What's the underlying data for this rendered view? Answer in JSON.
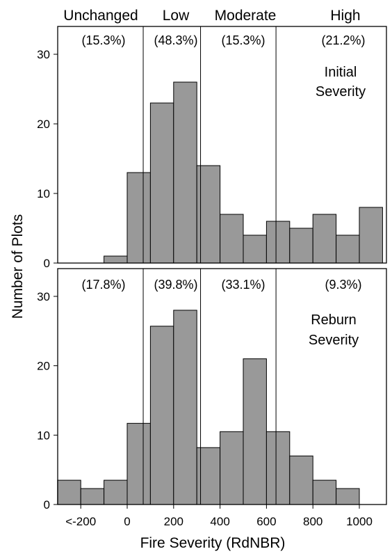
{
  "figure": {
    "ylabel": "Number of Plots",
    "xlabel": "Fire Severity (RdNBR)",
    "xtick_labels": [
      "<-200",
      "0",
      "200",
      "400",
      "600",
      "800",
      "1000"
    ],
    "xtick_values": [
      -200,
      0,
      200,
      400,
      600,
      800,
      1000
    ],
    "bar_color": "#999999",
    "edge_color": "#000000"
  },
  "chart_data": [
    {
      "type": "bar",
      "panel": "top",
      "panel_label": [
        "Initial",
        "Severity"
      ],
      "class_labels": [
        "Unchanged",
        "Low",
        "Moderate",
        "High"
      ],
      "class_percents": [
        "(15.3%)",
        "(48.3%)",
        "(15.3%)",
        "(21.2%)"
      ],
      "class_boundaries": [
        69,
        316,
        641
      ],
      "bin_width": 100,
      "bin_starts": [
        -300,
        -200,
        -100,
        0,
        100,
        200,
        300,
        400,
        500,
        600,
        700,
        800,
        900,
        1000
      ],
      "values": [
        0,
        0,
        1,
        13,
        23,
        26,
        14,
        7,
        4,
        6,
        5,
        7,
        4,
        8
      ],
      "ylim": [
        0,
        34
      ],
      "yticks": [
        0,
        10,
        20,
        30
      ],
      "grid": false
    },
    {
      "type": "bar",
      "panel": "bottom",
      "panel_label": [
        "Reburn",
        "Severity"
      ],
      "class_percents": [
        "(17.8%)",
        "(39.8%)",
        "(33.1%)",
        "(9.3%)"
      ],
      "class_boundaries": [
        69,
        316,
        641
      ],
      "bin_width": 100,
      "bin_starts": [
        -300,
        -200,
        -100,
        0,
        100,
        200,
        300,
        400,
        500,
        600,
        700,
        800,
        900,
        1000
      ],
      "values": [
        3.5,
        2.3,
        3.5,
        11.7,
        25.7,
        28,
        8.2,
        10.5,
        21,
        10.5,
        7,
        3.5,
        2.3,
        0
      ],
      "ylim": [
        0,
        34
      ],
      "yticks": [
        0,
        10,
        20,
        30
      ],
      "grid": false
    }
  ]
}
